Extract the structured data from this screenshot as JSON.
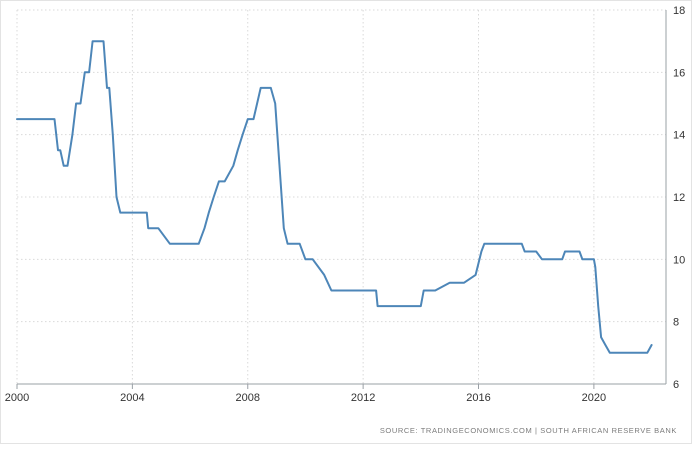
{
  "chart_data": {
    "type": "line",
    "title": "",
    "xlabel": "",
    "ylabel": "",
    "x_ticks": [
      "2000",
      "2004",
      "2008",
      "2012",
      "2016",
      "2020"
    ],
    "y_ticks": [
      "6",
      "8",
      "10",
      "12",
      "14",
      "16",
      "18"
    ],
    "xlim": [
      2000.0,
      2022.5
    ],
    "ylim": [
      6,
      18
    ],
    "grid": true,
    "colors": {
      "line": "#4d86b8",
      "grid": "#d9d9d9",
      "axis": "#9aa0a6",
      "text": "#333333"
    },
    "series": [
      {
        "x": [
          2000.0,
          2001.3,
          2001.42,
          2001.5,
          2001.62,
          2001.75,
          2001.92,
          2002.05,
          2002.2,
          2002.35,
          2002.5,
          2002.62,
          2002.75,
          2003.0,
          2003.12,
          2003.2,
          2003.32,
          2003.45,
          2003.58,
          2003.7,
          2003.82,
          2003.95,
          2004.0,
          2004.1,
          2004.5,
          2004.55,
          2004.9,
          2005.3,
          2005.5,
          2006.0,
          2006.3,
          2006.5,
          2006.65,
          2006.82,
          2007.0,
          2007.2,
          2007.5,
          2007.65,
          2007.82,
          2008.0,
          2008.2,
          2008.45,
          2008.6,
          2008.8,
          2008.95,
          2009.1,
          2009.25,
          2009.38,
          2009.5,
          2009.65,
          2009.8,
          2010.0,
          2010.25,
          2010.65,
          2010.9,
          2011.2,
          2012.0,
          2012.45,
          2012.5,
          2013.0,
          2014.0,
          2014.1,
          2014.5,
          2015.0,
          2015.5,
          2015.9,
          2016.1,
          2016.2,
          2016.5,
          2017.0,
          2017.5,
          2017.6,
          2018.0,
          2018.2,
          2018.5,
          2018.9,
          2019.0,
          2019.5,
          2019.6,
          2020.0,
          2020.05,
          2020.15,
          2020.25,
          2020.4,
          2020.55,
          2021.0,
          2021.5,
          2021.85,
          2022.0
        ],
        "y": [
          14.5,
          14.5,
          13.5,
          13.5,
          13.0,
          13.0,
          14.0,
          15.0,
          15.0,
          16.0,
          16.0,
          17.0,
          17.0,
          17.0,
          15.5,
          15.5,
          14.0,
          12.0,
          11.5,
          11.5,
          11.5,
          11.5,
          11.5,
          11.5,
          11.5,
          11.0,
          11.0,
          10.5,
          10.5,
          10.5,
          10.5,
          11.0,
          11.5,
          12.0,
          12.5,
          12.5,
          13.0,
          13.5,
          14.0,
          14.5,
          14.5,
          15.5,
          15.5,
          15.5,
          15.0,
          13.0,
          11.0,
          10.5,
          10.5,
          10.5,
          10.5,
          10.0,
          10.0,
          9.5,
          9.0,
          9.0,
          9.0,
          9.0,
          8.5,
          8.5,
          8.5,
          9.0,
          9.0,
          9.25,
          9.25,
          9.5,
          10.25,
          10.5,
          10.5,
          10.5,
          10.5,
          10.25,
          10.25,
          10.0,
          10.0,
          10.0,
          10.25,
          10.25,
          10.0,
          10.0,
          9.75,
          8.5,
          7.5,
          7.25,
          7.0,
          7.0,
          7.0,
          7.0,
          7.25
        ]
      }
    ]
  },
  "footer": {
    "source_text": "SOURCE: TRADINGECONOMICS.COM  |  SOUTH AFRICAN RESERVE BANK"
  }
}
